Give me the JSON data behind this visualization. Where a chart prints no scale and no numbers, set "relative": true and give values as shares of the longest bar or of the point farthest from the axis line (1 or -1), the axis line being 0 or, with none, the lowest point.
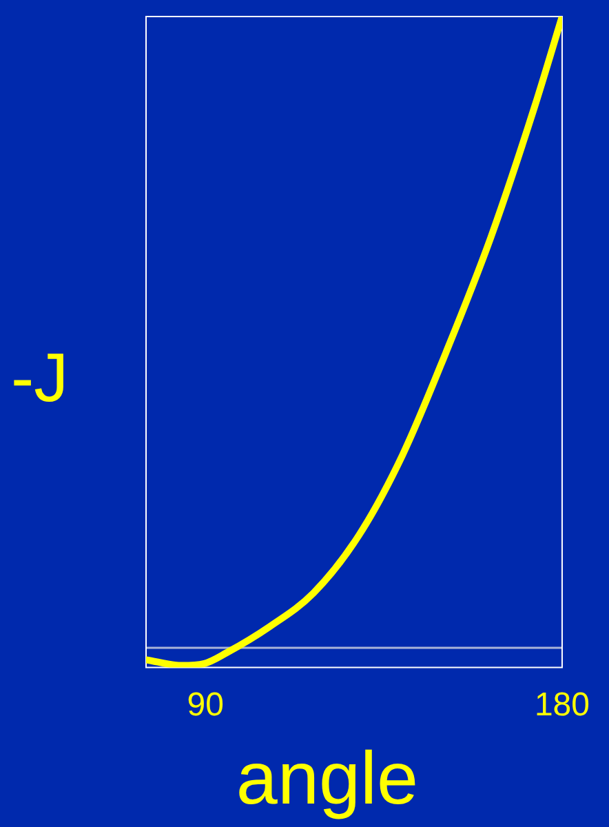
{
  "chart_data": {
    "type": "line",
    "xlabel": "angle",
    "ylabel": "-J",
    "relative": true,
    "grid": false,
    "legend": false,
    "marker": "none",
    "line_style": "solid",
    "xlim": [
      75,
      180
    ],
    "xticks": [
      90,
      180
    ],
    "ref_lines": [
      {
        "axis": "y",
        "value": 0,
        "color": "#aab4d8"
      }
    ],
    "x": [
      75,
      84,
      89.7,
      95.3,
      106.3,
      117.3,
      128.7,
      139.7,
      150.7,
      162,
      173,
      180
    ],
    "series": [
      {
        "color": "#ffff00",
        "values": [
          -0.019,
          -0.028,
          -0.025,
          -0.008,
          0.034,
          0.087,
          0.178,
          0.305,
          0.468,
          0.65,
          0.856,
          1
        ]
      }
    ]
  }
}
